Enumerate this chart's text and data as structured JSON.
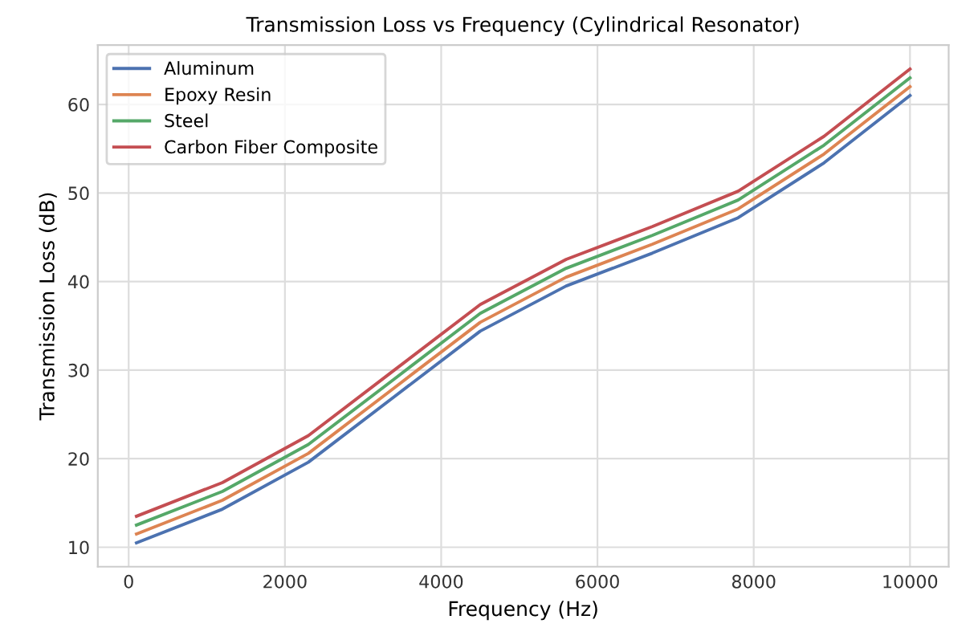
{
  "chart_data": {
    "type": "line",
    "title": "Transmission Loss vs Frequency (Cylindrical Resonator)",
    "xlabel": "Frequency (Hz)",
    "ylabel": "Transmission Loss (dB)",
    "x": [
      100,
      1200,
      2300,
      3400,
      4500,
      5600,
      6700,
      7800,
      8900,
      10000
    ],
    "series": [
      {
        "name": "Aluminum",
        "color": "#4c72b0",
        "values": [
          10.5,
          14.3,
          19.6,
          27,
          34.4,
          39.5,
          43.2,
          47.2,
          53.4,
          61
        ]
      },
      {
        "name": "Epoxy Resin",
        "color": "#dd8452",
        "values": [
          11.5,
          15.3,
          20.6,
          28,
          35.4,
          40.5,
          44.2,
          48.2,
          54.4,
          62
        ]
      },
      {
        "name": "Steel",
        "color": "#55a868",
        "values": [
          12.5,
          16.3,
          21.6,
          29,
          36.4,
          41.5,
          45.2,
          49.2,
          55.4,
          63
        ]
      },
      {
        "name": "Carbon Fiber Composite",
        "color": "#c44e52",
        "values": [
          13.5,
          17.3,
          22.6,
          30,
          37.4,
          42.5,
          46.2,
          50.2,
          56.4,
          64
        ]
      }
    ],
    "xlim": [
      -395,
      10495
    ],
    "ylim": [
      7.8,
      66.7
    ],
    "xticks": [
      0,
      2000,
      4000,
      6000,
      8000,
      10000
    ],
    "yticks": [
      10,
      20,
      30,
      40,
      50,
      60
    ],
    "grid": true,
    "legend": "top left",
    "line_style": "solid",
    "marker": "none"
  }
}
